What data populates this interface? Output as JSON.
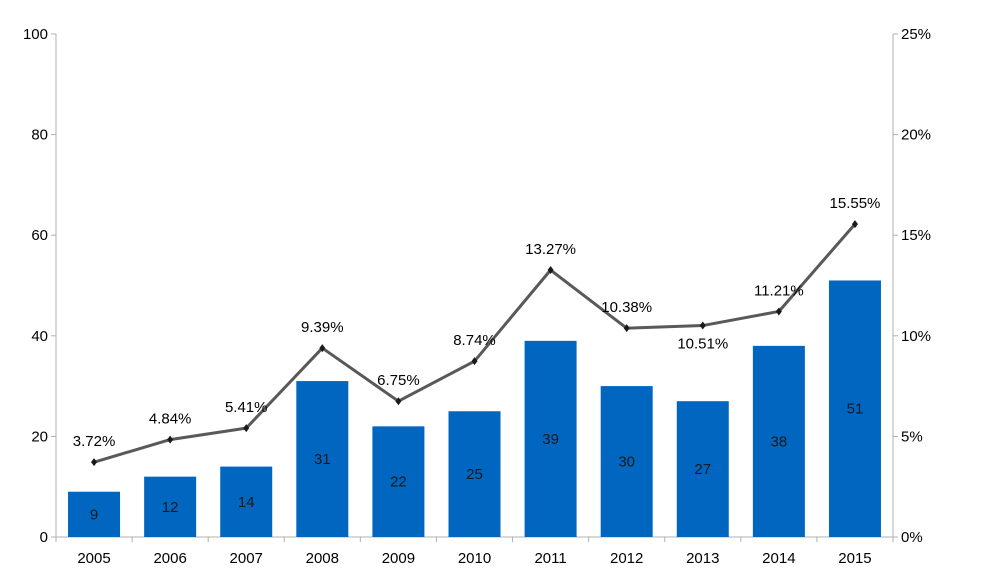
{
  "chart_data": {
    "type": "bar",
    "categories": [
      "2005",
      "2006",
      "2007",
      "2008",
      "2009",
      "2010",
      "2011",
      "2012",
      "2013",
      "2014",
      "2015"
    ],
    "series": [
      {
        "type": "bar",
        "axis": "left",
        "values": [
          9,
          12,
          14,
          31,
          22,
          25,
          39,
          30,
          27,
          38,
          51
        ]
      },
      {
        "type": "line",
        "axis": "right",
        "values": [
          3.72,
          4.84,
          5.41,
          9.39,
          6.75,
          8.74,
          13.27,
          10.38,
          10.51,
          11.21,
          15.55
        ],
        "labels": [
          "3.72%",
          "4.84%",
          "5.41%",
          "9.39%",
          "6.75%",
          "8.74%",
          "13.27%",
          "10.38%",
          "10.51%",
          "11.21%",
          "15.55%"
        ]
      }
    ],
    "y_left": {
      "min": 0,
      "max": 100,
      "ticks": [
        "0",
        "20",
        "40",
        "60",
        "80",
        "100"
      ]
    },
    "y_right": {
      "min": 0,
      "max": 25,
      "ticks": [
        "0%",
        "5%",
        "10%",
        "15%",
        "20%",
        "25%"
      ]
    },
    "title": "",
    "xlabel": "",
    "ylabel": "",
    "grid": false,
    "colors": {
      "bar": "#0066c0",
      "line": "#595959",
      "axis": "#b0b0b0"
    }
  }
}
